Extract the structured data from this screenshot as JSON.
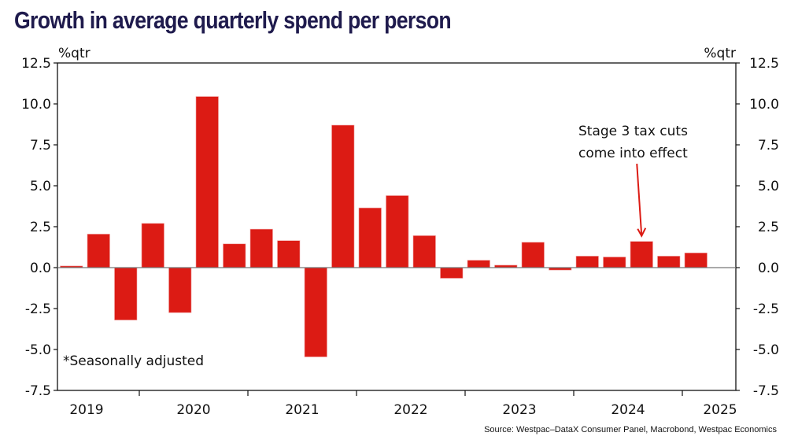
{
  "chart_data": {
    "type": "bar",
    "title": "Growth in average quarterly spend per person",
    "ylabel_left": "%qtr",
    "ylabel_right": "%qtr",
    "ylim": [
      -7.5,
      12.5
    ],
    "yticks": [
      "12.5",
      "10.0",
      "7.5",
      "5.0",
      "2.5",
      "0.0",
      "-2.5",
      "-5.0",
      "-7.5"
    ],
    "ytick_values": [
      12.5,
      10.0,
      7.5,
      5.0,
      2.5,
      0.0,
      -2.5,
      -5.0,
      -7.5
    ],
    "year_labels": [
      "2019",
      "2020",
      "2021",
      "2022",
      "2023",
      "2024",
      "2025"
    ],
    "categories": [
      "2019Q2",
      "2019Q3",
      "2019Q4",
      "2020Q1",
      "2020Q2",
      "2020Q3",
      "2020Q4",
      "2021Q1",
      "2021Q2",
      "2021Q3",
      "2021Q4",
      "2022Q1",
      "2022Q2",
      "2022Q3",
      "2022Q4",
      "2023Q1",
      "2023Q2",
      "2023Q3",
      "2023Q4",
      "2024Q1",
      "2024Q2",
      "2024Q3",
      "2024Q4",
      "2025Q1"
    ],
    "values": [
      0.1,
      2.05,
      -3.2,
      2.7,
      -2.75,
      10.45,
      1.45,
      2.35,
      1.65,
      -5.45,
      8.7,
      3.65,
      4.4,
      1.95,
      -0.65,
      0.45,
      0.15,
      1.55,
      -0.15,
      0.7,
      0.65,
      1.6,
      0.7,
      0.9
    ],
    "bar_color": "#dc1b14",
    "grid": false,
    "note": "*Seasonally adjusted",
    "annotation": {
      "lines": [
        "Stage 3 tax cuts",
        "come into effect"
      ],
      "target_category": "2024Q3",
      "arrow_color": "#dc1b14"
    },
    "source": "Source: Westpac–DataX Consumer Panel, Macrobond, Westpac Economics"
  }
}
